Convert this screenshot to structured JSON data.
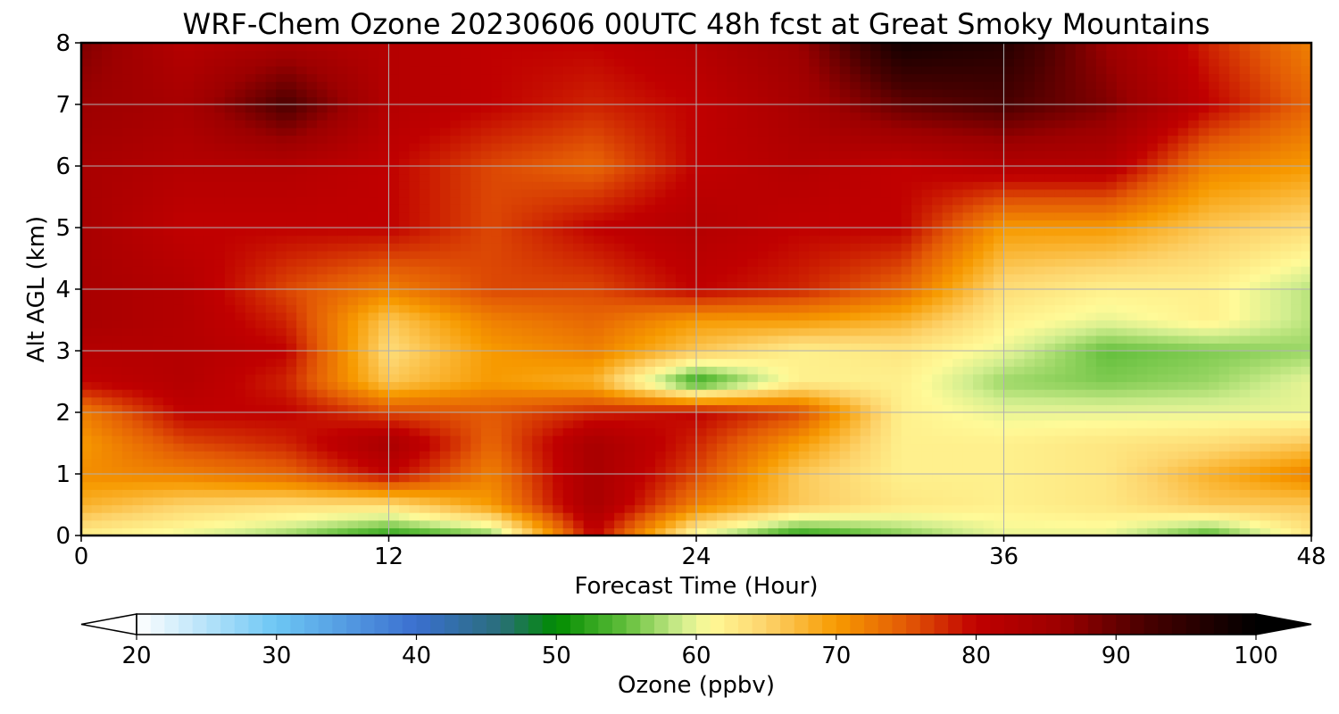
{
  "chart_data": {
    "type": "heatmap",
    "title": "WRF-Chem Ozone  20230606 00UTC 48h fcst at Great Smoky Mountains",
    "xlabel": "Forecast Time (Hour)",
    "ylabel": "Alt AGL (km)",
    "xlim": [
      0,
      48
    ],
    "ylim": [
      0,
      8
    ],
    "xticks": [
      "0",
      "12",
      "24",
      "36",
      "48"
    ],
    "yticks": [
      "0",
      "1",
      "2",
      "3",
      "4",
      "5",
      "6",
      "7",
      "8"
    ],
    "grid": true,
    "x": [
      0,
      4,
      8,
      12,
      16,
      20,
      24,
      28,
      32,
      36,
      40,
      44,
      48
    ],
    "y": [
      0,
      0.5,
      1,
      1.5,
      2,
      2.5,
      3,
      3.5,
      4,
      5,
      6,
      7,
      8
    ],
    "z": [
      [
        62,
        60,
        57,
        52,
        56,
        80,
        60,
        52,
        56,
        60,
        60,
        54,
        63
      ],
      [
        68,
        65,
        64,
        64,
        70,
        84,
        72,
        66,
        63,
        62,
        63,
        66,
        66
      ],
      [
        71,
        72,
        74,
        80,
        72,
        84,
        76,
        66,
        62,
        62,
        63,
        68,
        72
      ],
      [
        70,
        76,
        78,
        84,
        74,
        84,
        78,
        70,
        62,
        62,
        63,
        64,
        66
      ],
      [
        72,
        80,
        80,
        76,
        75,
        78,
        80,
        76,
        62,
        60,
        60,
        60,
        60
      ],
      [
        80,
        82,
        78,
        66,
        70,
        68,
        52,
        62,
        62,
        57,
        56,
        57,
        60
      ],
      [
        82,
        82,
        80,
        64,
        70,
        72,
        66,
        62,
        63,
        60,
        55,
        56,
        57
      ],
      [
        84,
        82,
        78,
        66,
        72,
        74,
        70,
        70,
        68,
        62,
        60,
        62,
        58
      ],
      [
        84,
        82,
        76,
        72,
        76,
        76,
        80,
        78,
        74,
        64,
        62,
        62,
        58
      ],
      [
        84,
        80,
        80,
        80,
        76,
        80,
        82,
        80,
        80,
        70,
        70,
        66,
        64
      ],
      [
        84,
        82,
        82,
        80,
        76,
        74,
        80,
        82,
        80,
        82,
        82,
        72,
        70
      ],
      [
        86,
        84,
        92,
        82,
        80,
        78,
        80,
        84,
        90,
        92,
        88,
        80,
        74
      ],
      [
        88,
        82,
        84,
        82,
        80,
        80,
        82,
        86,
        98,
        96,
        86,
        78,
        72
      ]
    ],
    "colorbar": {
      "label": "Ozone  (ppbv)",
      "min": 20,
      "max": 100,
      "extend": "both",
      "ticks": [
        "20",
        "30",
        "40",
        "50",
        "60",
        "70",
        "80",
        "90",
        "100"
      ],
      "stops": [
        {
          "v": 20,
          "c": "#ffffff"
        },
        {
          "v": 30,
          "c": "#6cc6f4"
        },
        {
          "v": 40,
          "c": "#3a6fcf"
        },
        {
          "v": 46,
          "c": "#2a6e7a"
        },
        {
          "v": 50,
          "c": "#008c00"
        },
        {
          "v": 55,
          "c": "#63bf3c"
        },
        {
          "v": 59,
          "c": "#d2ee8f"
        },
        {
          "v": 61,
          "c": "#fffa98"
        },
        {
          "v": 65,
          "c": "#fdd36b"
        },
        {
          "v": 70,
          "c": "#f79a00"
        },
        {
          "v": 75,
          "c": "#e35a05"
        },
        {
          "v": 80,
          "c": "#c00000"
        },
        {
          "v": 86,
          "c": "#9c0000"
        },
        {
          "v": 92,
          "c": "#4a0000"
        },
        {
          "v": 100,
          "c": "#000000"
        }
      ]
    }
  }
}
